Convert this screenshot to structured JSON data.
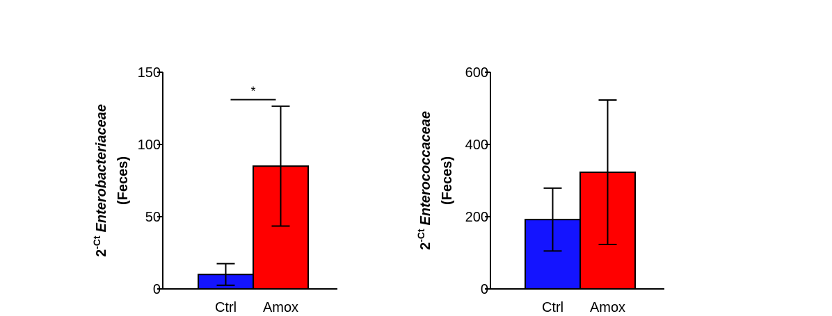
{
  "chart_data": [
    {
      "type": "bar",
      "categories": [
        "Ctrl",
        "Amox"
      ],
      "values": [
        10,
        85
      ],
      "errors": [
        7.5,
        41.5
      ],
      "colors": [
        "#1414ff",
        "#ff0000"
      ],
      "ylim": [
        0,
        150
      ],
      "yticks": [
        0,
        50,
        100,
        150
      ],
      "ytick_labels": [
        "0",
        "50",
        "100",
        "150"
      ],
      "ylabel": {
        "base": "2",
        "superscript": "-Ct",
        "taxon": "Enterobacteriaceae",
        "sample": "(Feces)"
      },
      "significance": {
        "label": "*",
        "between": [
          0,
          1
        ],
        "level": 131
      }
    },
    {
      "type": "bar",
      "categories": [
        "Ctrl",
        "Amox"
      ],
      "values": [
        192,
        323
      ],
      "errors": [
        87,
        200
      ],
      "colors": [
        "#1414ff",
        "#ff0000"
      ],
      "ylim": [
        0,
        600
      ],
      "yticks": [
        0,
        200,
        400,
        600
      ],
      "ytick_labels": [
        "0",
        "200",
        "400",
        "600"
      ],
      "ylabel": {
        "base": "2",
        "superscript": "-Ct",
        "taxon": "Enterococcaceae",
        "sample": "(Feces)"
      }
    }
  ]
}
